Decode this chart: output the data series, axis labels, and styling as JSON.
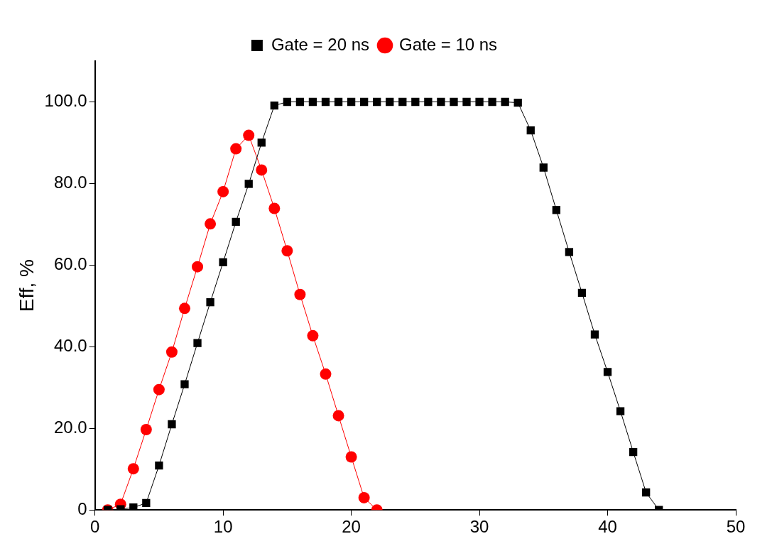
{
  "chart_data": {
    "type": "line",
    "ylabel": "Eff, %",
    "xlim": [
      0,
      50
    ],
    "xticks": [
      0,
      10,
      20,
      30,
      40,
      50
    ],
    "ylim": [
      0,
      110
    ],
    "yticks": [
      {
        "value": 0,
        "label": "0"
      },
      {
        "value": 20,
        "label": "20.0"
      },
      {
        "value": 40,
        "label": "40.0"
      },
      {
        "value": 60,
        "label": "60.0"
      },
      {
        "value": 80,
        "label": "80.0"
      },
      {
        "value": 100,
        "label": "100.0"
      }
    ],
    "grid": false,
    "legend": "top",
    "line_style": "solid",
    "x": [
      1,
      2,
      3,
      4,
      5,
      6,
      7,
      8,
      9,
      10,
      11,
      12,
      13,
      14,
      15,
      16,
      17,
      18,
      19,
      20,
      21,
      22,
      23,
      24,
      25,
      26,
      27,
      28,
      29,
      30,
      31,
      32,
      33,
      34,
      35,
      36,
      37,
      38,
      39,
      40,
      41,
      42,
      43,
      44
    ],
    "series": [
      {
        "name": "Gate = 20 ns",
        "color": "#000000",
        "marker": "square",
        "values": [
          0,
          0.2,
          0.6,
          1.7,
          10.9,
          21.0,
          30.8,
          40.9,
          50.9,
          60.7,
          70.6,
          79.9,
          90.0,
          99.1,
          100,
          100,
          100,
          100,
          100,
          100,
          100,
          100,
          100,
          100,
          100,
          100,
          100,
          100,
          100,
          100,
          100,
          100,
          99.8,
          93.0,
          83.9,
          73.5,
          63.2,
          53.2,
          43.0,
          33.8,
          24.2,
          14.2,
          4.3,
          0
        ]
      },
      {
        "name": "Gate = 10 ns",
        "color": "#ff0000",
        "marker": "circle",
        "x": [
          1,
          2,
          3,
          4,
          5,
          6,
          7,
          8,
          9,
          10,
          11,
          12,
          13,
          14,
          15,
          16,
          17,
          18,
          19,
          20,
          21,
          22
        ],
        "values": [
          0,
          1.4,
          10.1,
          19.7,
          29.5,
          38.7,
          49.4,
          59.6,
          70.1,
          78.0,
          88.5,
          91.8,
          83.3,
          73.9,
          63.5,
          52.8,
          42.7,
          33.3,
          23.1,
          13.0,
          3.0,
          0
        ]
      }
    ]
  }
}
